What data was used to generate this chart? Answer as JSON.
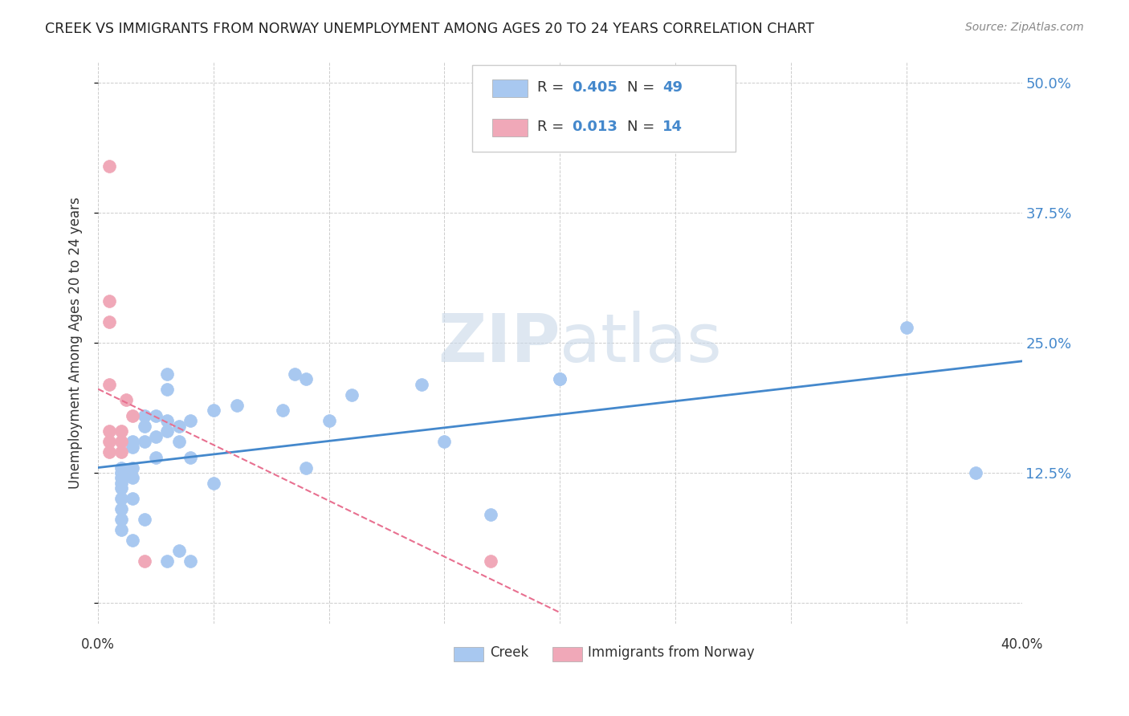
{
  "title": "CREEK VS IMMIGRANTS FROM NORWAY UNEMPLOYMENT AMONG AGES 20 TO 24 YEARS CORRELATION CHART",
  "source": "Source: ZipAtlas.com",
  "ylabel": "Unemployment Among Ages 20 to 24 years",
  "ytick_labels": [
    "50.0%",
    "37.5%",
    "25.0%",
    "12.5%",
    ""
  ],
  "ytick_values": [
    0.5,
    0.375,
    0.25,
    0.125,
    0.0
  ],
  "xtick_values": [
    0.0,
    0.05,
    0.1,
    0.15,
    0.2,
    0.25,
    0.3,
    0.35,
    0.4
  ],
  "xlim": [
    0.0,
    0.4
  ],
  "ylim": [
    -0.02,
    0.52
  ],
  "legend_creek": "Creek",
  "legend_norway": "Immigrants from Norway",
  "r_creek": "0.405",
  "n_creek": "49",
  "r_norway": "0.013",
  "n_norway": "14",
  "creek_color": "#a8c8f0",
  "norway_color": "#f0a8b8",
  "creek_line_color": "#4488cc",
  "norway_line_color": "#e87090",
  "watermark_zip": "ZIP",
  "watermark_atlas": "atlas",
  "watermark_color": "#c8d8e8",
  "background_color": "#ffffff",
  "creek_x": [
    0.01,
    0.01,
    0.01,
    0.01,
    0.01,
    0.01,
    0.01,
    0.01,
    0.01,
    0.015,
    0.015,
    0.015,
    0.015,
    0.015,
    0.015,
    0.02,
    0.02,
    0.02,
    0.02,
    0.025,
    0.025,
    0.025,
    0.03,
    0.03,
    0.03,
    0.03,
    0.03,
    0.035,
    0.035,
    0.035,
    0.04,
    0.04,
    0.04,
    0.05,
    0.05,
    0.06,
    0.08,
    0.085,
    0.09,
    0.09,
    0.1,
    0.11,
    0.14,
    0.15,
    0.17,
    0.2,
    0.2,
    0.35,
    0.38
  ],
  "creek_y": [
    0.13,
    0.125,
    0.12,
    0.115,
    0.11,
    0.1,
    0.09,
    0.08,
    0.07,
    0.155,
    0.15,
    0.13,
    0.12,
    0.1,
    0.06,
    0.18,
    0.17,
    0.155,
    0.08,
    0.18,
    0.16,
    0.14,
    0.22,
    0.205,
    0.175,
    0.165,
    0.04,
    0.17,
    0.155,
    0.05,
    0.175,
    0.14,
    0.04,
    0.185,
    0.115,
    0.19,
    0.185,
    0.22,
    0.215,
    0.13,
    0.175,
    0.2,
    0.21,
    0.155,
    0.085,
    0.215,
    0.215,
    0.265,
    0.125
  ],
  "norway_x": [
    0.005,
    0.005,
    0.005,
    0.005,
    0.005,
    0.005,
    0.005,
    0.01,
    0.01,
    0.01,
    0.012,
    0.015,
    0.02,
    0.17
  ],
  "norway_y": [
    0.42,
    0.29,
    0.27,
    0.21,
    0.165,
    0.155,
    0.145,
    0.165,
    0.155,
    0.145,
    0.195,
    0.18,
    0.04,
    0.04
  ]
}
